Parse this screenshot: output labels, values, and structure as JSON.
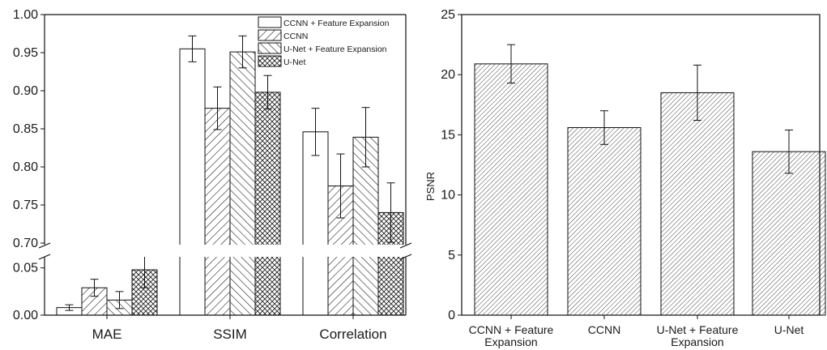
{
  "chart_data": [
    {
      "type": "bar",
      "categories": [
        "MAE",
        "SSIM",
        "Correlation"
      ],
      "series": [
        {
          "name": "CCNN + Feature Expansion",
          "pattern": "none",
          "values": [
            0.008,
            0.955,
            0.846
          ],
          "errors": [
            0.003,
            0.017,
            0.031
          ]
        },
        {
          "name": "CCNN",
          "pattern": "hatch-forward",
          "values": [
            0.029,
            0.877,
            0.775
          ],
          "errors": [
            0.009,
            0.028,
            0.042
          ]
        },
        {
          "name": "U-Net + Feature Expansion",
          "pattern": "hatch-backward",
          "values": [
            0.016,
            0.951,
            0.839
          ],
          "errors": [
            0.009,
            0.021,
            0.039
          ]
        },
        {
          "name": "U-Net",
          "pattern": "crosshatch",
          "values": [
            0.048,
            0.898,
            0.74
          ],
          "errors": [
            0.019,
            0.022,
            0.039
          ]
        }
      ],
      "yticks_lower": [
        "0.00",
        "0.05"
      ],
      "yticks_upper": [
        "0.70",
        "0.75",
        "0.80",
        "0.85",
        "0.90",
        "0.95",
        "1.00"
      ],
      "axis_break": [
        0.06,
        0.7
      ],
      "ylim": [
        0,
        1.0
      ],
      "legend_position": "top-right",
      "grid": false
    },
    {
      "type": "bar",
      "categories": [
        [
          "CCNN + Feature",
          "Expansion"
        ],
        [
          "CCNN"
        ],
        [
          "U-Net + Feature",
          "Expansion"
        ],
        [
          "U-Net"
        ]
      ],
      "values": [
        20.9,
        15.6,
        18.5,
        13.6
      ],
      "errors": [
        1.6,
        1.4,
        2.3,
        1.8
      ],
      "ylabel": "PSNR",
      "yticks": [
        "0",
        "5",
        "10",
        "15",
        "20",
        "25"
      ],
      "ylim": [
        0,
        25
      ],
      "pattern": "hatch-forward",
      "grid": false
    }
  ]
}
